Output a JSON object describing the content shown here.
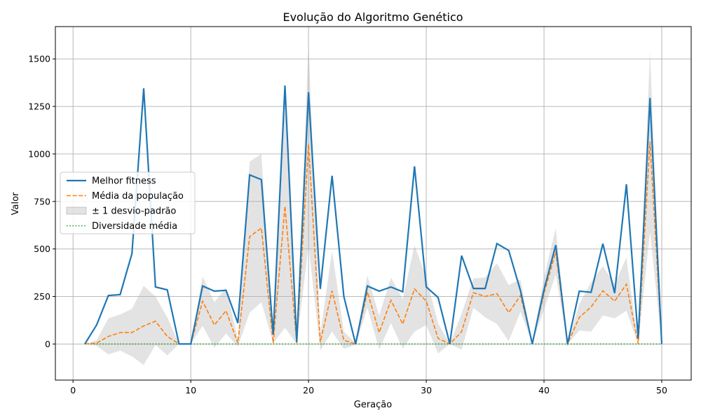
{
  "chart_data": {
    "type": "line",
    "title": "Evolução do Algoritmo Genético",
    "xlabel": "Geração",
    "ylabel": "Valor",
    "xlim": [
      -1.5,
      52.5
    ],
    "ylim": [
      -190,
      1670
    ],
    "xticks": [
      0,
      10,
      20,
      30,
      40,
      50
    ],
    "yticks": [
      0,
      250,
      500,
      750,
      1000,
      1250,
      1500
    ],
    "grid": true,
    "legend_position": "center-left",
    "x": [
      1,
      2,
      3,
      4,
      5,
      6,
      7,
      8,
      9,
      10,
      11,
      12,
      13,
      14,
      15,
      16,
      17,
      18,
      19,
      20,
      21,
      22,
      23,
      24,
      25,
      26,
      27,
      28,
      29,
      30,
      31,
      32,
      33,
      34,
      35,
      36,
      37,
      38,
      39,
      40,
      41,
      42,
      43,
      44,
      45,
      46,
      47,
      48,
      49,
      50
    ],
    "series": [
      {
        "name": "Melhor fitness",
        "color": "#1f77b4",
        "style": "solid",
        "values": [
          0,
          100,
          255,
          260,
          475,
          1345,
          300,
          285,
          0,
          0,
          305,
          278,
          282,
          110,
          890,
          865,
          50,
          1360,
          10,
          1325,
          290,
          885,
          250,
          0,
          305,
          278,
          300,
          275,
          935,
          300,
          245,
          0,
          465,
          292,
          292,
          528,
          492,
          280,
          0,
          285,
          520,
          0,
          278,
          272,
          528,
          268,
          840,
          30,
          1295,
          0
        ]
      },
      {
        "name": "Média da população",
        "color": "#ff7f0e",
        "style": "dashed",
        "values": [
          0,
          5,
          40,
          60,
          60,
          95,
          120,
          40,
          0,
          0,
          225,
          100,
          175,
          5,
          565,
          610,
          5,
          725,
          5,
          1050,
          10,
          280,
          20,
          0,
          275,
          60,
          230,
          105,
          290,
          225,
          30,
          0,
          65,
          270,
          250,
          265,
          165,
          255,
          5,
          265,
          485,
          0,
          140,
          195,
          280,
          225,
          315,
          0,
          1065,
          0
        ]
      },
      {
        "name": "± 1 desvio-padrão",
        "color": "#b0b0b0",
        "style": "band",
        "lower": [
          0,
          -10,
          -55,
          -35,
          -65,
          -110,
          -5,
          -60,
          0,
          0,
          95,
          -20,
          55,
          -15,
          165,
          220,
          5,
          85,
          0,
          520,
          -35,
          65,
          -25,
          -5,
          190,
          -30,
          110,
          -25,
          65,
          100,
          -50,
          0,
          -30,
          190,
          140,
          105,
          15,
          170,
          5,
          180,
          365,
          0,
          70,
          65,
          150,
          135,
          175,
          0,
          590,
          0
        ],
        "upper": [
          0,
          20,
          135,
          155,
          185,
          305,
          250,
          140,
          0,
          0,
          355,
          220,
          295,
          25,
          960,
          1000,
          5,
          1370,
          10,
          1580,
          55,
          490,
          65,
          5,
          360,
          150,
          350,
          235,
          520,
          350,
          110,
          0,
          160,
          345,
          350,
          425,
          310,
          340,
          5,
          350,
          610,
          0,
          210,
          325,
          410,
          315,
          455,
          0,
          1540,
          0
        ]
      },
      {
        "name": "Diversidade média",
        "color": "#2ca02c",
        "style": "dotted",
        "values": [
          0,
          0,
          0,
          0,
          0,
          0,
          0,
          0,
          0,
          0,
          0,
          0,
          0,
          0,
          0,
          0,
          0,
          0,
          0,
          0,
          0,
          0,
          0,
          0,
          0,
          0,
          0,
          0,
          0,
          0,
          0,
          0,
          0,
          0,
          0,
          0,
          0,
          0,
          0,
          0,
          0,
          0,
          0,
          0,
          0,
          0,
          0,
          0,
          0,
          0
        ]
      }
    ]
  }
}
